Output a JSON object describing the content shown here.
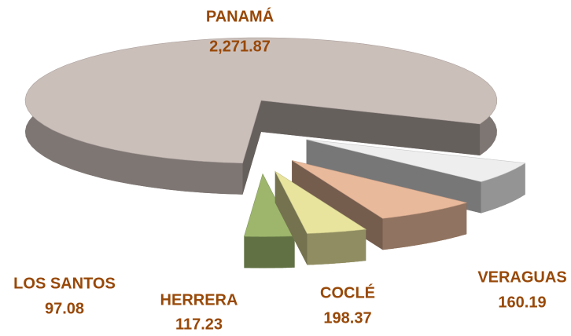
{
  "chart_data": {
    "type": "pie",
    "categories": [
      "PANAMÁ",
      "VERAGUAS",
      "COCLÉ",
      "HERRERA",
      "LOS SANTOS"
    ],
    "values": [
      2271.87,
      160.19,
      198.37,
      117.23,
      97.08
    ],
    "value_labels": [
      "2,271.87",
      "160.19",
      "198.37",
      "117.23",
      "97.08"
    ],
    "colors": [
      "#cbbfba",
      "#eeeeee",
      "#e9b99b",
      "#e8e49e",
      "#9db66c"
    ]
  }
}
